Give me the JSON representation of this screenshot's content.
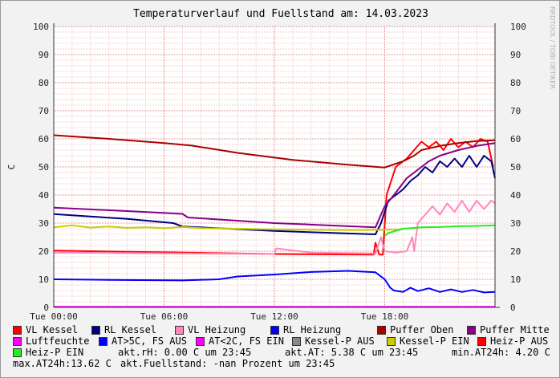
{
  "chart_data": {
    "type": "line",
    "title": "Temperaturverlauf und Fuellstand am: 14.03.2023",
    "ylabel": "C",
    "watermark": "RRDTOOL / TOBI OETIKER",
    "ylim": [
      0,
      100
    ],
    "yticks": [
      0,
      10,
      20,
      30,
      40,
      50,
      60,
      70,
      80,
      90,
      100
    ],
    "xlim_hours": [
      0,
      24
    ],
    "xticks": [
      {
        "h": 0,
        "label": "Tue 00:00"
      },
      {
        "h": 6,
        "label": "Tue 06:00"
      },
      {
        "h": 12,
        "label": "Tue 12:00"
      },
      {
        "h": 18,
        "label": "Tue 18:00"
      }
    ],
    "series": [
      {
        "name": "VL Kessel",
        "color": "#ff0000",
        "points": [
          [
            0,
            20.2
          ],
          [
            12,
            19
          ],
          [
            17.4,
            18.8
          ],
          [
            17.5,
            23
          ],
          [
            17.7,
            18.8
          ],
          [
            17.9,
            18.8
          ],
          [
            18.1,
            40
          ],
          [
            18.6,
            50
          ],
          [
            19.2,
            53
          ],
          [
            19.6,
            56
          ],
          [
            20,
            59
          ],
          [
            20.4,
            57
          ],
          [
            20.8,
            59
          ],
          [
            21.2,
            56
          ],
          [
            21.6,
            60
          ],
          [
            22,
            57
          ],
          [
            22.4,
            59
          ],
          [
            22.8,
            57
          ],
          [
            23.2,
            60
          ],
          [
            23.6,
            59
          ],
          [
            23.9,
            50
          ]
        ]
      },
      {
        "name": "RL Kessel",
        "color": "#000080",
        "points": [
          [
            0,
            33.2
          ],
          [
            4,
            31.5
          ],
          [
            6.5,
            30
          ],
          [
            7,
            28.8
          ],
          [
            12,
            27.2
          ],
          [
            17.5,
            26
          ],
          [
            17.8,
            30
          ],
          [
            18.2,
            38
          ],
          [
            18.6,
            40
          ],
          [
            19,
            42
          ],
          [
            19.4,
            45
          ],
          [
            19.8,
            47
          ],
          [
            20.2,
            50
          ],
          [
            20.6,
            48
          ],
          [
            21,
            52
          ],
          [
            21.4,
            50
          ],
          [
            21.8,
            53
          ],
          [
            22.2,
            50
          ],
          [
            22.6,
            54
          ],
          [
            23,
            50
          ],
          [
            23.4,
            54
          ],
          [
            23.8,
            52
          ],
          [
            24,
            46
          ]
        ]
      },
      {
        "name": "VL Heizung",
        "color": "#ff88bb",
        "points": [
          [
            0,
            19.5
          ],
          [
            12,
            19
          ],
          [
            12.1,
            21
          ],
          [
            14,
            19.5
          ],
          [
            17.5,
            19.2
          ],
          [
            17.8,
            25
          ],
          [
            18,
            20
          ],
          [
            18.6,
            19.5
          ],
          [
            19.2,
            20
          ],
          [
            19.5,
            25
          ],
          [
            19.6,
            20
          ],
          [
            19.8,
            30
          ],
          [
            20.2,
            33
          ],
          [
            20.6,
            36
          ],
          [
            21,
            33
          ],
          [
            21.4,
            37
          ],
          [
            21.8,
            34
          ],
          [
            22.2,
            38
          ],
          [
            22.6,
            34
          ],
          [
            23,
            38
          ],
          [
            23.4,
            35
          ],
          [
            23.8,
            38
          ],
          [
            24,
            37
          ]
        ]
      },
      {
        "name": "RL Heizung",
        "color": "#0000ff",
        "points": [
          [
            0,
            10
          ],
          [
            3,
            9.8
          ],
          [
            7,
            9.6
          ],
          [
            9,
            10
          ],
          [
            10,
            11
          ],
          [
            12,
            11.7
          ],
          [
            14,
            12.6
          ],
          [
            16,
            13
          ],
          [
            17.5,
            12.5
          ],
          [
            18,
            10
          ],
          [
            18.3,
            7
          ],
          [
            18.5,
            6
          ],
          [
            19,
            5.5
          ],
          [
            19.4,
            7
          ],
          [
            19.8,
            5.8
          ],
          [
            20.4,
            6.8
          ],
          [
            21,
            5.5
          ],
          [
            21.6,
            6.4
          ],
          [
            22.2,
            5.5
          ],
          [
            22.8,
            6.2
          ],
          [
            23.4,
            5.3
          ],
          [
            24,
            5.5
          ]
        ]
      },
      {
        "name": "Puffer Oben",
        "color": "#aa0000",
        "points": [
          [
            0,
            61.3
          ],
          [
            3,
            60
          ],
          [
            6,
            58.5
          ],
          [
            7.5,
            57.6
          ],
          [
            10,
            55
          ],
          [
            13,
            52.5
          ],
          [
            16,
            50.8
          ],
          [
            18,
            49.8
          ],
          [
            19,
            52
          ],
          [
            19.6,
            54
          ],
          [
            20,
            56
          ],
          [
            21,
            57.5
          ],
          [
            22,
            58.5
          ],
          [
            23,
            59.2
          ],
          [
            24,
            59.5
          ]
        ]
      },
      {
        "name": "Puffer Mitte",
        "color": "#880088",
        "points": [
          [
            0,
            35.5
          ],
          [
            4,
            34.3
          ],
          [
            7,
            33.3
          ],
          [
            7.3,
            32
          ],
          [
            12,
            30
          ],
          [
            17.5,
            28.5
          ],
          [
            17.8,
            33
          ],
          [
            18,
            36
          ],
          [
            18.5,
            40
          ],
          [
            19.2,
            46
          ],
          [
            19.6,
            48
          ],
          [
            20.4,
            52
          ],
          [
            21,
            54
          ],
          [
            22,
            56
          ],
          [
            23,
            57.5
          ],
          [
            24,
            58.5
          ]
        ]
      },
      {
        "name": "Luftfeuchte",
        "color": "#ff00ff",
        "points": [
          [
            0,
            0.2
          ],
          [
            24,
            0.2
          ]
        ]
      },
      {
        "name": "AT>5C, FS AUS",
        "color": "#0000ff",
        "points": []
      },
      {
        "name": "AT<2C, FS EIN",
        "color": "#ff00ff",
        "points": []
      },
      {
        "name": "Kessel-P AUS",
        "color": "#888888",
        "points": []
      },
      {
        "name": "Kessel-P EIN",
        "color": "#cccc00",
        "points": [
          [
            0,
            28.5
          ],
          [
            1,
            29.2
          ],
          [
            2,
            28.4
          ],
          [
            3,
            28.8
          ],
          [
            4,
            28.3
          ],
          [
            5,
            28.5
          ],
          [
            6,
            28.2
          ],
          [
            7,
            28.6
          ],
          [
            8,
            28.2
          ],
          [
            10,
            28
          ],
          [
            12,
            27.8
          ],
          [
            14,
            27.6
          ],
          [
            16,
            27.5
          ],
          [
            18,
            27.6
          ],
          [
            19,
            27.8
          ]
        ]
      },
      {
        "name": "Heiz-P AUS",
        "color": "#ff0000",
        "points": []
      },
      {
        "name": "Heiz-P EIN",
        "color": "#22ee22",
        "points": [
          [
            18,
            25.5
          ],
          [
            18.2,
            26.5
          ],
          [
            19,
            28
          ],
          [
            20,
            28.5
          ],
          [
            21,
            28.6
          ],
          [
            22,
            28.9
          ],
          [
            23,
            29
          ],
          [
            24,
            29.2
          ]
        ]
      }
    ]
  },
  "legend": {
    "items": [
      {
        "label": "VL Kessel",
        "color": "#ff0000"
      },
      {
        "label": "RL Kessel",
        "color": "#000080"
      },
      {
        "label": "VL Heizung",
        "color": "#ff88bb"
      },
      {
        "label": "RL Heizung",
        "color": "#0000ff"
      },
      {
        "label": "Puffer Oben",
        "color": "#aa0000"
      },
      {
        "label": "Puffer Mitte",
        "color": "#880088"
      },
      {
        "label": "Luftfeuchte",
        "color": "#ff00ff"
      },
      {
        "label": "AT>5C, FS AUS",
        "color": "#0000ff"
      },
      {
        "label": "AT<2C, FS EIN",
        "color": "#ff00ff"
      },
      {
        "label": "Kessel-P AUS",
        "color": "#888888"
      },
      {
        "label": "Kessel-P EIN",
        "color": "#cccc00"
      },
      {
        "label": "Heiz-P AUS",
        "color": "#ff0000"
      },
      {
        "label": "Heiz-P EIN",
        "color": "#22ee22"
      }
    ],
    "info": {
      "rh": "akt.rH: 0.00 C um 23:45",
      "at": "akt.AT: 5.38 C um 23:45",
      "min": "min.AT24h: 4.20 C",
      "max": "max.AT24h:13.62 C",
      "fill": "akt.Fuellstand: -nan Prozent um 23:45"
    }
  }
}
